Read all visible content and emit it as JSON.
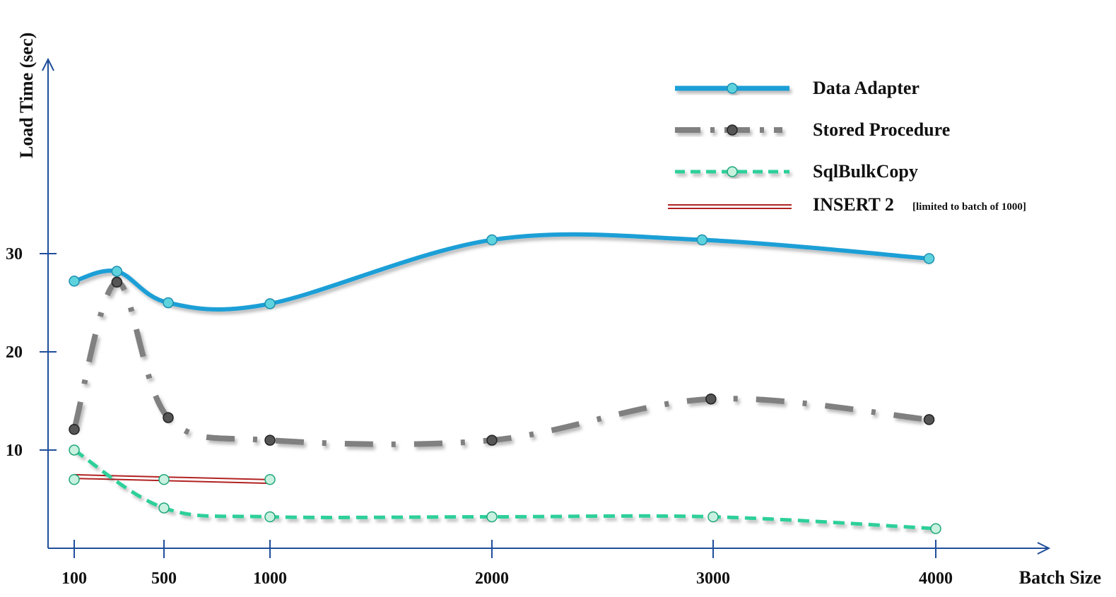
{
  "chart_data": {
    "type": "line",
    "xlabel": "Batch Size",
    "ylabel": "Load Time (sec)",
    "x_ticks": [
      "100",
      "500",
      "1000",
      "2000",
      "3000",
      "4000"
    ],
    "y_ticks": [
      10,
      20,
      30
    ],
    "xlim": [
      100,
      4000
    ],
    "ylim": [
      0,
      33
    ],
    "grid": false,
    "legend_position": "top-right",
    "series": [
      {
        "name": "Data Adapter",
        "style": "solid",
        "color": "#1e9fd6",
        "marker_color": "#5fd3dd",
        "points": [
          [
            100,
            27.2
          ],
          [
            290,
            28.2
          ],
          [
            520,
            25.0
          ],
          [
            1000,
            24.9
          ],
          [
            2000,
            31.4
          ],
          [
            2950,
            31.4
          ],
          [
            3970,
            29.5
          ]
        ]
      },
      {
        "name": "Stored Procedure",
        "style": "dash-dot",
        "color": "#808080",
        "marker_color": "#555555",
        "points": [
          [
            100,
            12.1
          ],
          [
            290,
            27.1
          ],
          [
            520,
            13.3
          ],
          [
            1000,
            11.0
          ],
          [
            2000,
            11.0
          ],
          [
            2990,
            15.2
          ],
          [
            3970,
            13.1
          ]
        ]
      },
      {
        "name": "SqlBulkCopy",
        "style": "dashed",
        "color": "#2ecf9a",
        "marker_color": "#c8f1e0",
        "points": [
          [
            100,
            10.0
          ],
          [
            500,
            4.1
          ],
          [
            1000,
            3.2
          ],
          [
            2000,
            3.2
          ],
          [
            3000,
            3.2
          ],
          [
            4000,
            2.0
          ]
        ]
      },
      {
        "name": "INSERT 2",
        "note": "[limited to batch of 1000]",
        "style": "double",
        "color": "#b22222",
        "points": [
          [
            100,
            7.3
          ],
          [
            1000,
            6.8
          ]
        ],
        "markers": [
          [
            100,
            7.0
          ],
          [
            500,
            7.0
          ],
          [
            1000,
            7.0
          ]
        ]
      }
    ]
  }
}
